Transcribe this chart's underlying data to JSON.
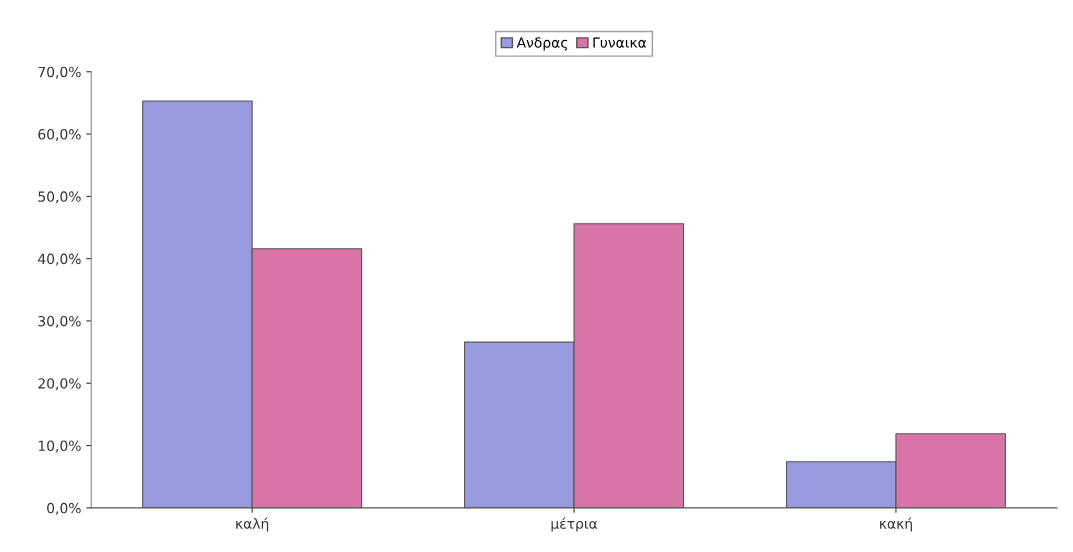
{
  "chart_data": {
    "type": "bar",
    "categories": [
      "καλή",
      "μέτρια",
      "κακή"
    ],
    "series": [
      {
        "name": "Ανδρας",
        "color": "#9999e0",
        "values": [
          65.3,
          26.6,
          7.4
        ]
      },
      {
        "name": "Γυναικα",
        "color": "#d874a8",
        "values": [
          41.6,
          45.6,
          11.9
        ]
      }
    ],
    "ylim": [
      0,
      70
    ],
    "yticks": [
      {
        "value": 0,
        "label": "0,0%"
      },
      {
        "value": 10,
        "label": "10,0%"
      },
      {
        "value": 20,
        "label": "20,0%"
      },
      {
        "value": 30,
        "label": "30,0%"
      },
      {
        "value": 40,
        "label": "40,0%"
      },
      {
        "value": 50,
        "label": "50,0%"
      },
      {
        "value": 60,
        "label": "60,0%"
      },
      {
        "value": 70,
        "label": "70,0%"
      }
    ],
    "grid": false,
    "legend": "top"
  }
}
